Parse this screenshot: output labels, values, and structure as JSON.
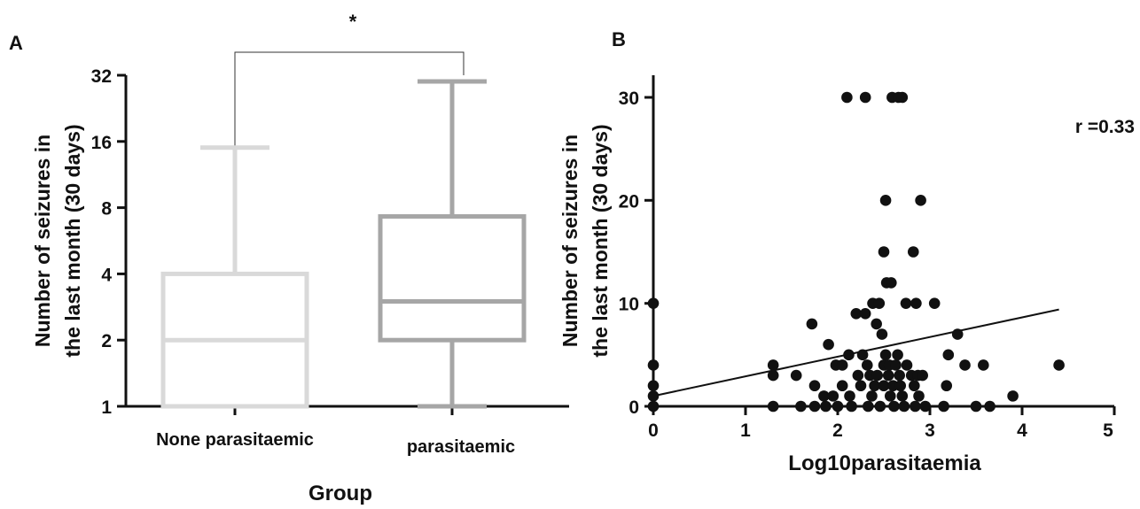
{
  "chart_data": [
    {
      "panel": "A",
      "type": "box",
      "title": "",
      "xlabel": "Group",
      "ylabel_line1": "Number of seizures in",
      "ylabel_line2": "the last month (30 days)",
      "yscale": "log2",
      "ylim": [
        1,
        32
      ],
      "yticks": [
        1,
        2,
        4,
        8,
        16,
        32
      ],
      "ytick_labels": [
        "1",
        "2",
        "4",
        "8",
        "16",
        "32"
      ],
      "significance": "*",
      "categories": [
        "None parasitaemic",
        "parasitaemic"
      ],
      "series": [
        {
          "category": "None parasitaemic",
          "min": 1,
          "q1": 1,
          "median": 2,
          "q3": 4,
          "max": 15,
          "color": "#d9d9d9"
        },
        {
          "category": "parasitaemic",
          "min": 1,
          "q1": 2,
          "median": 3,
          "q3": 7.3,
          "max": 30,
          "color": "#a6a6a6"
        }
      ]
    },
    {
      "panel": "B",
      "type": "scatter",
      "title": "",
      "xlabel": "Log10parasitaemia",
      "ylabel_line1": "Number of seizures in",
      "ylabel_line2": "the last month (30 days)",
      "xlim": [
        0,
        5
      ],
      "ylim": [
        0,
        32
      ],
      "xticks": [
        0,
        1,
        2,
        3,
        4,
        5
      ],
      "xtick_labels": [
        "0",
        "1",
        "2",
        "3",
        "4",
        "5"
      ],
      "yticks": [
        0,
        10,
        20,
        30
      ],
      "ytick_labels": [
        "0",
        "10",
        "20",
        "30"
      ],
      "annotation": "r =0.33",
      "trendline": {
        "x": [
          0,
          4.4
        ],
        "y": [
          1,
          9.4
        ]
      },
      "points": [
        [
          0,
          10
        ],
        [
          0,
          4
        ],
        [
          0,
          2
        ],
        [
          0,
          1
        ],
        [
          0,
          0
        ],
        [
          1.3,
          4
        ],
        [
          1.3,
          3
        ],
        [
          1.3,
          0
        ],
        [
          1.55,
          3
        ],
        [
          1.6,
          0
        ],
        [
          1.72,
          8
        ],
        [
          1.75,
          2
        ],
        [
          1.75,
          0
        ],
        [
          1.85,
          1
        ],
        [
          1.87,
          0
        ],
        [
          1.9,
          6
        ],
        [
          1.95,
          1
        ],
        [
          1.98,
          4
        ],
        [
          2.0,
          0
        ],
        [
          2.05,
          2
        ],
        [
          2.05,
          4
        ],
        [
          2.1,
          30
        ],
        [
          2.12,
          5
        ],
        [
          2.13,
          1
        ],
        [
          2.15,
          0
        ],
        [
          2.2,
          9
        ],
        [
          2.22,
          3
        ],
        [
          2.25,
          2
        ],
        [
          2.27,
          5
        ],
        [
          2.3,
          30
        ],
        [
          2.3,
          9
        ],
        [
          2.32,
          4
        ],
        [
          2.33,
          0
        ],
        [
          2.35,
          3
        ],
        [
          2.37,
          1
        ],
        [
          2.38,
          10
        ],
        [
          2.4,
          2
        ],
        [
          2.42,
          8
        ],
        [
          2.43,
          3
        ],
        [
          2.45,
          10
        ],
        [
          2.46,
          0
        ],
        [
          2.48,
          7
        ],
        [
          2.5,
          4
        ],
        [
          2.5,
          2
        ],
        [
          2.5,
          15
        ],
        [
          2.52,
          20
        ],
        [
          2.52,
          5
        ],
        [
          2.53,
          12
        ],
        [
          2.55,
          3
        ],
        [
          2.56,
          4
        ],
        [
          2.57,
          1
        ],
        [
          2.58,
          12
        ],
        [
          2.59,
          30
        ],
        [
          2.6,
          2
        ],
        [
          2.61,
          0
        ],
        [
          2.63,
          4
        ],
        [
          2.65,
          5
        ],
        [
          2.66,
          30
        ],
        [
          2.67,
          3
        ],
        [
          2.68,
          2
        ],
        [
          2.7,
          30
        ],
        [
          2.7,
          1
        ],
        [
          2.72,
          0
        ],
        [
          2.74,
          10
        ],
        [
          2.75,
          4
        ],
        [
          2.8,
          3
        ],
        [
          2.82,
          15
        ],
        [
          2.83,
          2
        ],
        [
          2.84,
          0
        ],
        [
          2.85,
          10
        ],
        [
          2.87,
          3
        ],
        [
          2.88,
          1
        ],
        [
          2.9,
          20
        ],
        [
          2.92,
          3
        ],
        [
          2.95,
          0
        ],
        [
          3.05,
          10
        ],
        [
          3.15,
          0
        ],
        [
          3.18,
          2
        ],
        [
          3.2,
          5
        ],
        [
          3.3,
          7
        ],
        [
          3.38,
          4
        ],
        [
          3.5,
          0
        ],
        [
          3.58,
          4
        ],
        [
          3.65,
          0
        ],
        [
          3.9,
          1
        ],
        [
          4.4,
          4
        ]
      ]
    }
  ]
}
